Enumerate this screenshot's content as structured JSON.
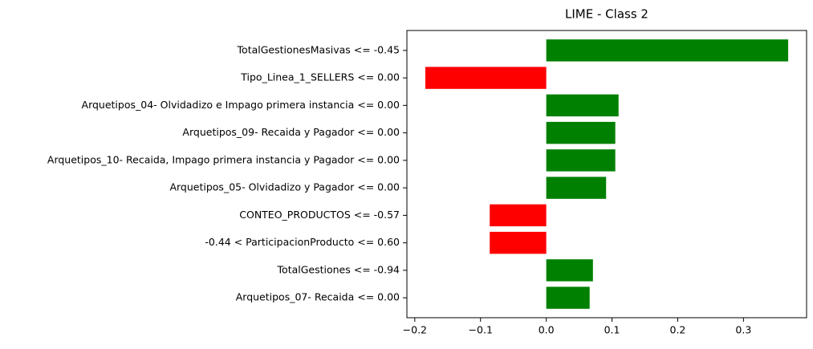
{
  "chart_data": {
    "type": "barh",
    "title": "LIME - Class 2",
    "categories": [
      "TotalGestionesMasivas <= -0.45",
      "Tipo_Linea_1_SELLERS <= 0.00",
      "Arquetipos_04- Olvidadizo e Impago primera instancia <= 0.00",
      "Arquetipos_09- Recaida y Pagador <= 0.00",
      "Arquetipos_10- Recaida, Impago primera instancia y Pagador <= 0.00",
      "Arquetipos_05- Olvidadizo y Pagador <= 0.00",
      "CONTEO_PRODUCTOS <= -0.57",
      "-0.44 < ParticipacionProducto <= 0.60",
      "TotalGestiones <= -0.94",
      "Arquetipos_07- Recaida <= 0.00"
    ],
    "values": [
      0.368,
      -0.184,
      0.11,
      0.105,
      0.105,
      0.091,
      -0.086,
      -0.086,
      0.071,
      0.066
    ],
    "colors": [
      "#008000",
      "#ff0000",
      "#008000",
      "#008000",
      "#008000",
      "#008000",
      "#ff0000",
      "#ff0000",
      "#008000",
      "#008000"
    ],
    "xlim": [
      -0.212,
      0.396
    ],
    "xticks": [
      {
        "value": -0.2,
        "label": "−0.2"
      },
      {
        "value": -0.1,
        "label": "−0.1"
      },
      {
        "value": 0.0,
        "label": "0.0"
      },
      0.1,
      0.2,
      0.3
    ],
    "grid": false
  }
}
